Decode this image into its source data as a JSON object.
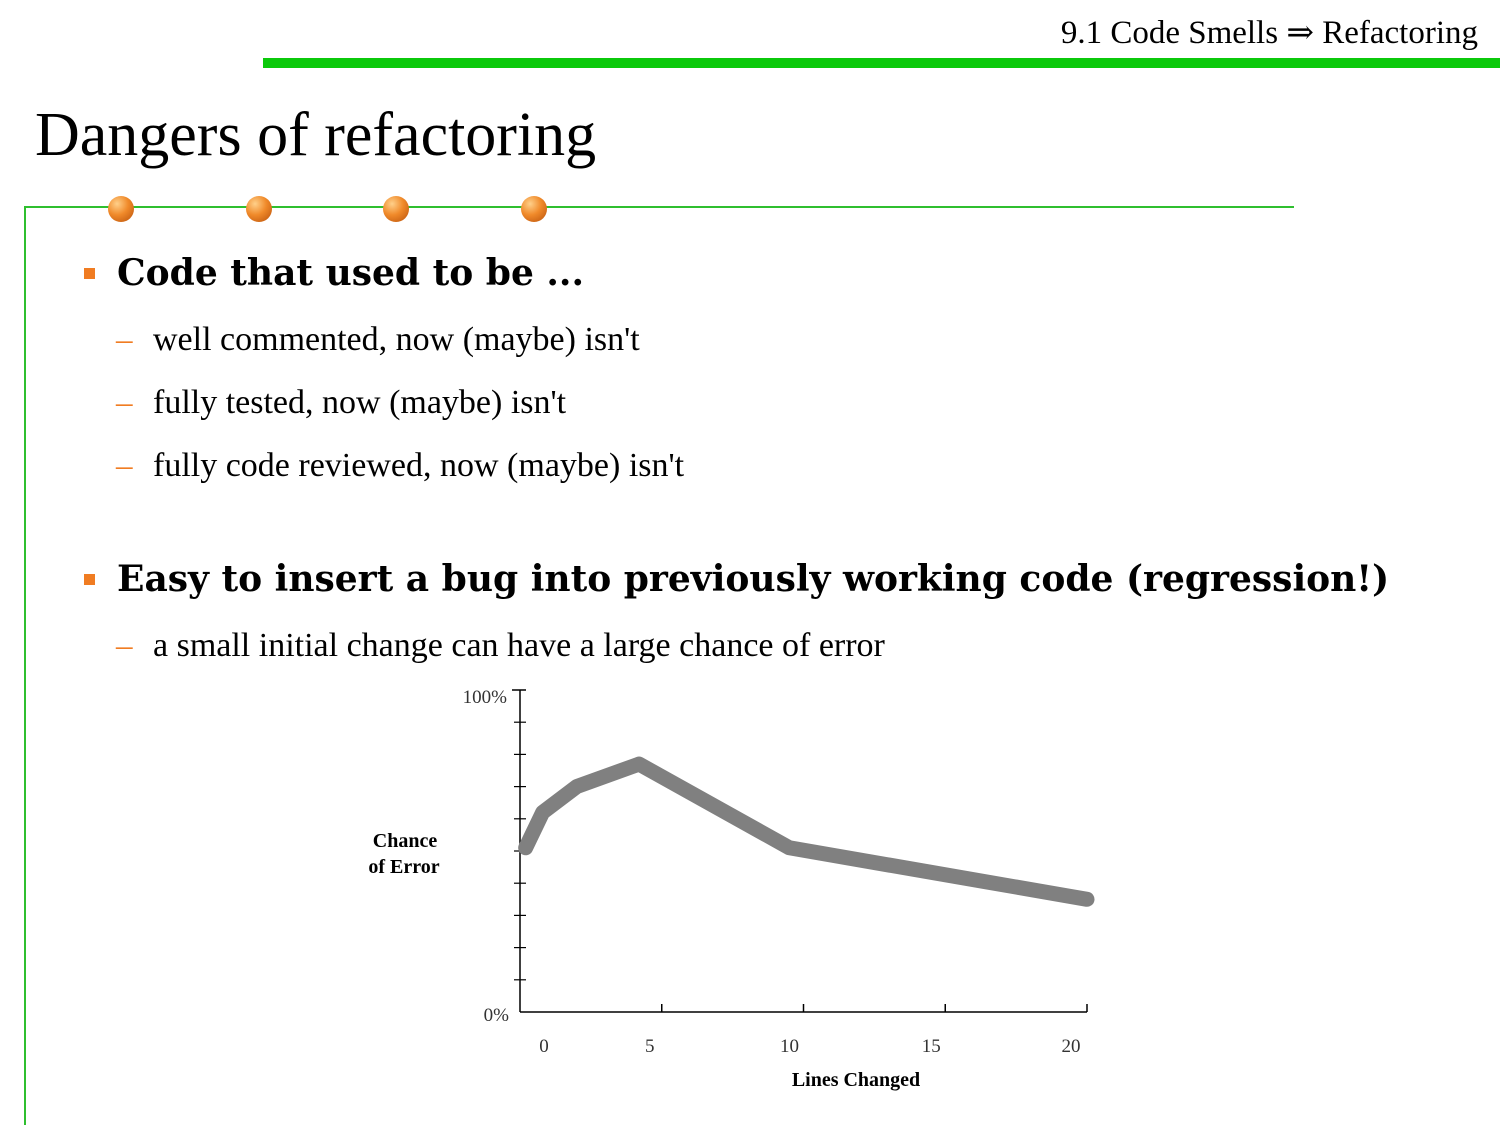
{
  "header": {
    "section_title": "9.1 Code Smells ⇒ Refactoring"
  },
  "slide": {
    "title": "Dangers of refactoring",
    "bullets": [
      {
        "text": "Code that used to be ...",
        "sub": [
          "well commented, now (maybe) isn't",
          "fully tested, now (maybe) isn't",
          "fully code reviewed, now (maybe) isn't"
        ]
      },
      {
        "text": "Easy to insert a bug into previously working code (regression!)",
        "sub": [
          "a small initial change can have a large chance of error"
        ]
      }
    ],
    "sub_marker": "–"
  },
  "chart_data": {
    "type": "line",
    "xlabel": "Lines Changed",
    "ylabel_line1": "Chance",
    "ylabel_line2": "of Error",
    "xlim": [
      0,
      20
    ],
    "ylim": [
      0,
      100
    ],
    "x_ticks": [
      0,
      5,
      10,
      15,
      20
    ],
    "x_tick_labels": [
      "0",
      "5",
      "10",
      "15",
      "20"
    ],
    "y_tick_labels": {
      "max": "100%",
      "min": "0%"
    },
    "y_minor_ticks": 10,
    "series": [
      {
        "x": [
          0.2,
          0.8,
          2.0,
          4.2,
          9.5,
          20
        ],
        "y": [
          51,
          62,
          70,
          77,
          51,
          35
        ]
      }
    ],
    "line_color": "#808080"
  }
}
